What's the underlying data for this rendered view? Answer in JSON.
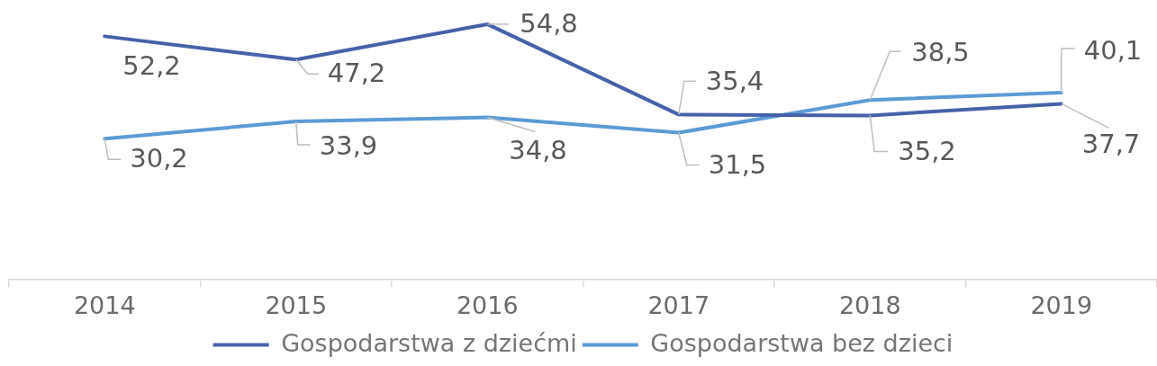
{
  "chart_data": {
    "type": "line",
    "categories": [
      "2014",
      "2015",
      "2016",
      "2017",
      "2018",
      "2019"
    ],
    "series": [
      {
        "name": "Gospodarstwa z dziećmi",
        "color": "#4561a9",
        "values": [
          52.2,
          47.2,
          54.8,
          35.4,
          35.2,
          37.7
        ],
        "value_labels": [
          "52,2",
          "47,2",
          "54,8",
          "35,4",
          "35,2",
          "37,7"
        ]
      },
      {
        "name": "Gospodarstwa bez dzieci",
        "color": "#5b9bd5",
        "values": [
          30.2,
          33.9,
          34.8,
          31.5,
          38.5,
          40.1
        ],
        "value_labels": [
          "30,2",
          "33,9",
          "34,8",
          "31,5",
          "38,5",
          "40,1"
        ]
      }
    ],
    "tick_labels": "x",
    "grid": false,
    "legend": "bottom",
    "marker": "none"
  }
}
